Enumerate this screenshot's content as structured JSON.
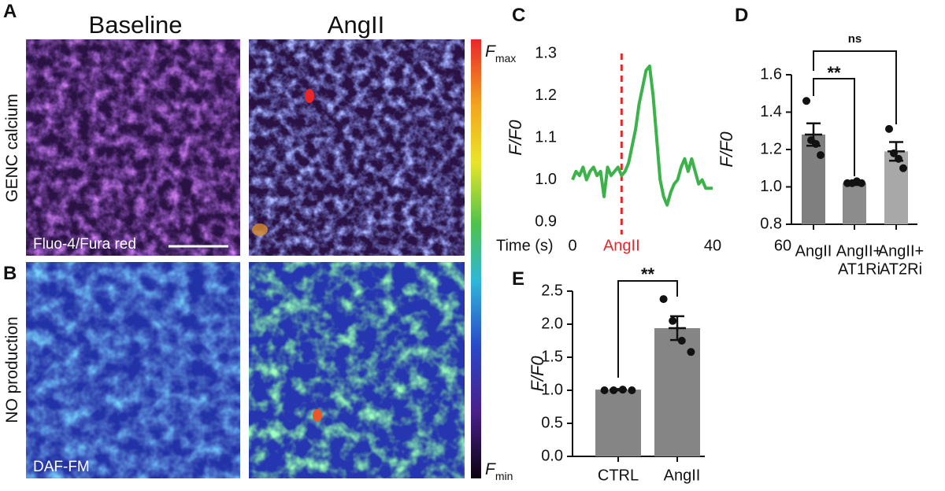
{
  "panels": {
    "A": "A",
    "B": "B",
    "col_titles": [
      "Baseline",
      "AngII"
    ],
    "row_titles": [
      "GENC calcium",
      "NO production"
    ],
    "image_labels": [
      "Fluo-4/Fura red",
      "DAF-FM"
    ],
    "colorbar": {
      "max": {
        "symbol": "F",
        "sub": "max"
      },
      "min": {
        "symbol": "F",
        "sub": "min"
      }
    }
  },
  "chart_data": [
    {
      "type": "line",
      "panel": "C",
      "ylabel": "F/F0",
      "xlabel": "Time (s)",
      "color": "#3cb34a",
      "x": [
        0,
        1,
        2,
        3,
        4,
        5,
        6,
        7,
        8,
        9,
        10,
        11,
        12,
        13,
        14,
        15,
        16,
        17,
        18,
        19,
        20,
        21,
        22,
        23,
        24,
        25,
        26,
        27,
        28,
        29,
        30,
        31,
        32,
        33,
        34,
        35,
        36,
        37,
        38,
        39,
        40
      ],
      "values": [
        1.0,
        1.02,
        1.01,
        1.03,
        1.0,
        1.02,
        1.03,
        1.01,
        1.02,
        0.96,
        1.03,
        1.01,
        1.02,
        1.03,
        1.01,
        1.02,
        1.04,
        1.08,
        1.12,
        1.18,
        1.22,
        1.26,
        1.27,
        1.2,
        1.1,
        1.0,
        0.96,
        0.94,
        0.97,
        0.99,
        1.0,
        1.03,
        1.05,
        1.02,
        1.05,
        1.02,
        0.99,
        1.0,
        0.98,
        0.98,
        0.98
      ],
      "xlim": [
        0,
        60
      ],
      "xticks": [
        0,
        40,
        60
      ],
      "ylim": [
        0.9,
        1.3
      ],
      "yticks": [
        {
          "value": 0.9,
          "label": "0.9"
        },
        {
          "value": 1.0,
          "label": "1.0"
        },
        {
          "value": 1.1,
          "label": "1.1"
        },
        {
          "value": 1.2,
          "label": "1.2"
        },
        {
          "value": 1.3,
          "label": "1.3"
        }
      ],
      "event": {
        "x": 14,
        "label": "AngII",
        "color": "#e8262a"
      }
    },
    {
      "type": "bar",
      "panel": "D",
      "ylabel": "F/F0",
      "categories": [
        [
          "AngII"
        ],
        [
          "AngII+",
          "AT1Ri"
        ],
        [
          "AngII+",
          "AT2Ri"
        ]
      ],
      "values": [
        1.28,
        1.02,
        1.19
      ],
      "errors": [
        0.06,
        0.01,
        0.05
      ],
      "points": [
        [
          1.46,
          1.25,
          1.23,
          1.17
        ],
        [
          1.02,
          1.02,
          1.03,
          1.02
        ],
        [
          1.31,
          1.18,
          1.15,
          1.1
        ]
      ],
      "colors": [
        "#7f7f7f",
        "#8c8c8c",
        "#a8a8a8"
      ],
      "ylim": [
        0.8,
        1.6
      ],
      "yticks": [
        {
          "value": 0.8,
          "label": "0.8"
        },
        {
          "value": 1.0,
          "label": "1.0"
        },
        {
          "value": 1.2,
          "label": "1.2"
        },
        {
          "value": 1.4,
          "label": "1.4"
        },
        {
          "value": 1.6,
          "label": "1.6"
        }
      ],
      "annotations": [
        "**",
        "ns"
      ]
    },
    {
      "type": "bar",
      "panel": "E",
      "ylabel": "F/F0",
      "categories": [
        [
          "CTRL"
        ],
        [
          "AngII"
        ]
      ],
      "values": [
        1.01,
        1.94
      ],
      "errors": [
        0.01,
        0.18
      ],
      "points": [
        [
          1.0,
          1.0,
          1.01,
          1.0
        ],
        [
          2.38,
          2.05,
          1.75,
          1.58
        ]
      ],
      "colors": [
        "#858585",
        "#858585"
      ],
      "ylim": [
        0,
        2.5
      ],
      "yticks": [
        {
          "value": 0,
          "label": "0.0"
        },
        {
          "value": 0.5,
          "label": "0.5"
        },
        {
          "value": 1.0,
          "label": "1.0"
        },
        {
          "value": 1.5,
          "label": "1.5"
        },
        {
          "value": 2.0,
          "label": "2.0"
        },
        {
          "value": 2.5,
          "label": "2.5"
        }
      ],
      "annotations": [
        "**"
      ]
    }
  ]
}
